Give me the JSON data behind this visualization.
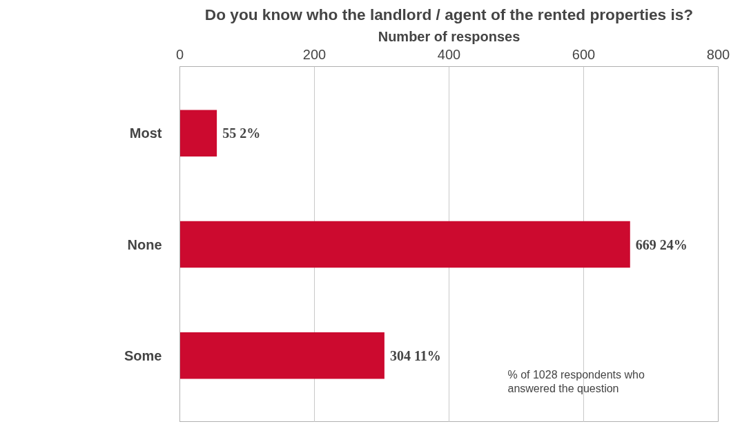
{
  "chart_data": {
    "type": "bar",
    "orientation": "horizontal",
    "title": "Do you know who the landlord / agent of the rented properties is?",
    "xlabel": "Number of responses",
    "categories": [
      "Most",
      "None",
      "Some"
    ],
    "values": [
      55,
      669,
      304
    ],
    "value_labels": [
      "55  2%",
      "669  24%",
      "304  11%"
    ],
    "color": "#cc0a2f",
    "xlim": [
      0,
      800
    ],
    "xticks": [
      0,
      200,
      400,
      600,
      800
    ],
    "grid": "x",
    "annotations": [
      "% of  1028 respondents who answered the question"
    ]
  }
}
